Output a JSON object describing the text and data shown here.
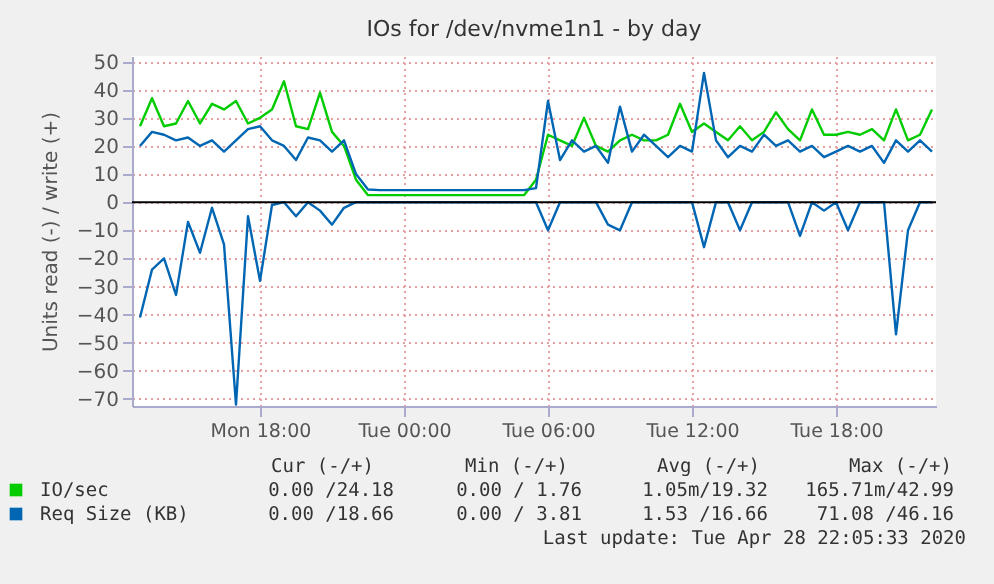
{
  "chart_data": {
    "type": "line",
    "title": "IOs for /dev/nvme1n1 - by day",
    "ylabel": "Units read (-) / write (+)",
    "x": [
      "2020-04-27T13:00",
      "2020-04-27T13:30",
      "2020-04-27T14:00",
      "2020-04-27T14:30",
      "2020-04-27T15:00",
      "2020-04-27T15:30",
      "2020-04-27T16:00",
      "2020-04-27T16:30",
      "2020-04-27T17:00",
      "2020-04-27T17:30",
      "2020-04-27T18:00",
      "2020-04-27T18:30",
      "2020-04-27T19:00",
      "2020-04-27T19:30",
      "2020-04-27T20:00",
      "2020-04-27T20:30",
      "2020-04-27T21:00",
      "2020-04-27T21:30",
      "2020-04-27T22:00",
      "2020-04-27T22:30",
      "2020-04-27T23:00",
      "2020-04-27T23:30",
      "2020-04-28T00:00",
      "2020-04-28T00:30",
      "2020-04-28T01:00",
      "2020-04-28T01:30",
      "2020-04-28T02:00",
      "2020-04-28T02:30",
      "2020-04-28T03:00",
      "2020-04-28T03:30",
      "2020-04-28T04:00",
      "2020-04-28T04:30",
      "2020-04-28T05:00",
      "2020-04-28T05:30",
      "2020-04-28T06:00",
      "2020-04-28T06:30",
      "2020-04-28T07:00",
      "2020-04-28T07:30",
      "2020-04-28T08:00",
      "2020-04-28T08:30",
      "2020-04-28T09:00",
      "2020-04-28T09:30",
      "2020-04-28T10:00",
      "2020-04-28T10:30",
      "2020-04-28T11:00",
      "2020-04-28T11:30",
      "2020-04-28T12:00",
      "2020-04-28T12:30",
      "2020-04-28T13:00",
      "2020-04-28T13:30",
      "2020-04-28T14:00",
      "2020-04-28T14:30",
      "2020-04-28T15:00",
      "2020-04-28T15:30",
      "2020-04-28T16:00",
      "2020-04-28T16:30",
      "2020-04-28T17:00",
      "2020-04-28T17:30",
      "2020-04-28T18:00",
      "2020-04-28T18:30",
      "2020-04-28T19:00",
      "2020-04-28T19:30",
      "2020-04-28T20:00",
      "2020-04-28T20:30",
      "2020-04-28T21:00",
      "2020-04-28T21:30",
      "2020-04-28T22:00"
    ],
    "series": [
      {
        "name": "IO/sec",
        "color": "#00cc00",
        "values": [
          27,
          37,
          27,
          28,
          36,
          28,
          35,
          33,
          36,
          28,
          30,
          33,
          43,
          27,
          26,
          39,
          25,
          20,
          8,
          2.5,
          2.5,
          2.5,
          2.5,
          2.5,
          2.5,
          2.5,
          2.5,
          2.5,
          2.5,
          2.5,
          2.5,
          2.5,
          2.5,
          8,
          24,
          22,
          20,
          30,
          20,
          18,
          22,
          24,
          22,
          22,
          24,
          35,
          25,
          28,
          25,
          22,
          27,
          22,
          25,
          32,
          26,
          22,
          33,
          24,
          24,
          25,
          24,
          26,
          22,
          33,
          22,
          24,
          33
        ]
      },
      {
        "name": "Req Size (KB)",
        "color": "#0066b3",
        "values": [
          20,
          25,
          24,
          22,
          23,
          20,
          22,
          18,
          22,
          26,
          27,
          22,
          20,
          15,
          23,
          22,
          18,
          22,
          10,
          4.5,
          4.3,
          4.3,
          4.3,
          4.3,
          4.3,
          4.3,
          4.3,
          4.3,
          4.3,
          4.3,
          4.3,
          4.3,
          4.3,
          5,
          36,
          15,
          22,
          18,
          20,
          14,
          34,
          18,
          24,
          20,
          16,
          20,
          18,
          46,
          22,
          16,
          20,
          18,
          24,
          20,
          22,
          18,
          20,
          16,
          18,
          20,
          18,
          20,
          14,
          22,
          18,
          22,
          18
        ]
      },
      {
        "color": "#0066b3",
        "values": [
          -41,
          -24,
          -20,
          -33,
          -7,
          -18,
          -2,
          -15,
          -72,
          -5,
          -28,
          -1,
          0,
          -5,
          0,
          -3,
          -8,
          -2,
          0,
          0,
          0,
          0,
          0,
          0,
          0,
          0,
          0,
          0,
          0,
          0,
          0,
          0,
          0,
          0,
          -10,
          0,
          0,
          0,
          0,
          -8,
          -10,
          0,
          0,
          0,
          0,
          0,
          0,
          -16,
          0,
          0,
          -10,
          0,
          0,
          0,
          0,
          -12,
          0,
          -3,
          0,
          -10,
          0,
          0,
          0,
          -47,
          -10,
          0,
          0
        ]
      }
    ],
    "xlim": [
      "2020-04-27T12:40",
      "2020-04-28T22:10"
    ],
    "xticks": [
      {
        "value": "2020-04-27T18:00",
        "label": "Mon 18:00"
      },
      {
        "value": "2020-04-28T00:00",
        "label": "Tue 00:00"
      },
      {
        "value": "2020-04-28T06:00",
        "label": "Tue 06:00"
      },
      {
        "value": "2020-04-28T12:00",
        "label": "Tue 12:00"
      },
      {
        "value": "2020-04-28T18:00",
        "label": "Tue 18:00"
      }
    ],
    "ylim": [
      -72.5,
      52
    ],
    "yticks": [
      -70,
      -60,
      -50,
      -40,
      -30,
      -20,
      -10,
      0,
      10,
      20,
      30,
      40,
      50
    ],
    "ref_lines": [
      {
        "axis": "y",
        "value": 0,
        "color": "#000000"
      }
    ],
    "grid": true,
    "legend": "bottom",
    "annotations": [
      "Cur (-/+)",
      "Min (-/+)",
      "Avg (-/+)",
      "Max (-/+)",
      "0.00 /24.18",
      "0.00 / 1.76",
      "1.05m/19.32",
      "165.71m/42.99",
      "0.00 /18.66",
      "0.00 / 3.81",
      "1.53 /16.66",
      "71.08 /46.16",
      "Last update: Tue Apr 28 22:05:33 2020"
    ]
  }
}
